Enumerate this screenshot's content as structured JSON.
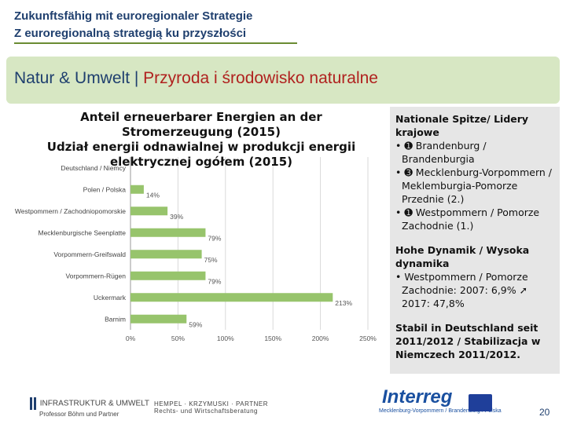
{
  "header": {
    "line1": "Zukunftsfähig mit euroregionaler Strategie",
    "line2": "Z euroregionalną strategią ku przyszłości"
  },
  "band": {
    "de": "Natur & Umwelt",
    "sep": " | ",
    "pl": "Przyroda i środowisko naturalne"
  },
  "chart_data": {
    "type": "bar",
    "orientation": "horizontal",
    "title_de": "Anteil erneuerbarer Energien an der Stromerzeugung (2015)",
    "title_pl": "Udział energii odnawialnej w produkcji energii elektrycznej ogółem (2015)",
    "categories": [
      "Deutschland / Niemcy",
      "Polen / Polska",
      "Westpommern / Zachodniopomorskie",
      "Mecklenburgische Seenplatte",
      "Vorpommern-Greifswald",
      "Vorpommern-Rügen",
      "Uckermark",
      "Barnim"
    ],
    "values": [
      null,
      14,
      39,
      79,
      75,
      79,
      213,
      59
    ],
    "value_labels": [
      "",
      "14%",
      "39%",
      "79%",
      "75%",
      "79%",
      "213%",
      "59%"
    ],
    "x_ticks": [
      "0%",
      "50%",
      "100%",
      "150%",
      "200%",
      "250%"
    ],
    "xlim": [
      0,
      250
    ],
    "bar_color": "#97c46c",
    "grid": true
  },
  "side": {
    "block1_heading": "Nationale Spitze/ Lidery krajowe",
    "block1_items": [
      "• ➊ Brandenburg / Brandenburgia",
      "• ➌ Mecklenburg-Vorpommern / Meklemburgia-Pomorze Przednie (2.)",
      "• ➊ Westpommern / Pomorze Zachodnie (1.)"
    ],
    "block2_heading": "Hohe Dynamik / Wysoka dynamika",
    "block2_items": [
      "• Westpommern / Pomorze Zachodnie: 2007: 6,9% ➚ 2017: 47,8%"
    ],
    "block3_heading": "Stabil in Deutschland seit 2011/2012 / Stabilizacja w Niemczech 2011/2012."
  },
  "footer": {
    "left": "INFRASTRUKTUR & UMWELT",
    "left_sub": "Professor Böhm und Partner",
    "middle": "HEMPEL · KRZYMUSKI · PARTNER",
    "middle_sub": "Rechts- und Wirtschaftsberatung",
    "interreg": "Interreg",
    "interreg_sub": "Mecklenburg-Vorpommern / Brandenburg / Polska",
    "page": "20"
  }
}
